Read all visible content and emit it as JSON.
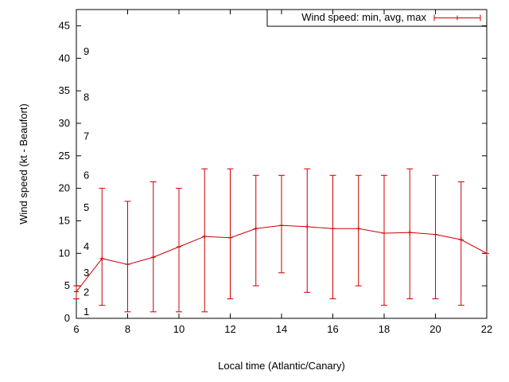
{
  "chart_data": {
    "type": "line",
    "subtype": "yerrorlines",
    "title": "",
    "legend_label": "Wind speed: min, avg, max",
    "xlabel": "Local time (Atlantic/Canary)",
    "ylabel": "Wind speed (kt - Beaufort)",
    "xlim": [
      6,
      22
    ],
    "ylim": [
      0,
      47.5
    ],
    "xticks": [
      6,
      8,
      10,
      12,
      14,
      16,
      18,
      20,
      22
    ],
    "yticks": [
      0,
      5,
      10,
      15,
      20,
      25,
      30,
      35,
      40,
      45
    ],
    "beaufort_labels": [
      {
        "bft": "1",
        "kt": 1
      },
      {
        "bft": "2",
        "kt": 4
      },
      {
        "bft": "3",
        "kt": 7
      },
      {
        "bft": "4",
        "kt": 11
      },
      {
        "bft": "5",
        "kt": 17
      },
      {
        "bft": "6",
        "kt": 22
      },
      {
        "bft": "7",
        "kt": 28
      },
      {
        "bft": "8",
        "kt": 34
      },
      {
        "bft": "9",
        "kt": 41
      }
    ],
    "series_color": "#cc0000",
    "axis_color": "#000000",
    "grid": false,
    "legend_position": "top-right-box",
    "x": [
      6,
      7,
      8,
      9,
      10,
      11,
      12,
      13,
      14,
      15,
      16,
      17,
      18,
      19,
      20,
      21,
      22
    ],
    "avg": [
      4.1,
      9.2,
      8.3,
      9.4,
      11.0,
      12.6,
      12.4,
      13.8,
      14.3,
      14.1,
      13.8,
      13.8,
      13.1,
      13.2,
      12.9,
      12.1,
      10.0
    ],
    "min": [
      3,
      2,
      1,
      1,
      1,
      1,
      3,
      5,
      7,
      4,
      3,
      5,
      2,
      3,
      3,
      2,
      10
    ],
    "max": [
      5,
      20,
      18,
      21,
      20,
      23,
      23,
      22,
      22,
      23,
      22,
      22,
      22,
      23,
      22,
      21,
      10
    ]
  }
}
